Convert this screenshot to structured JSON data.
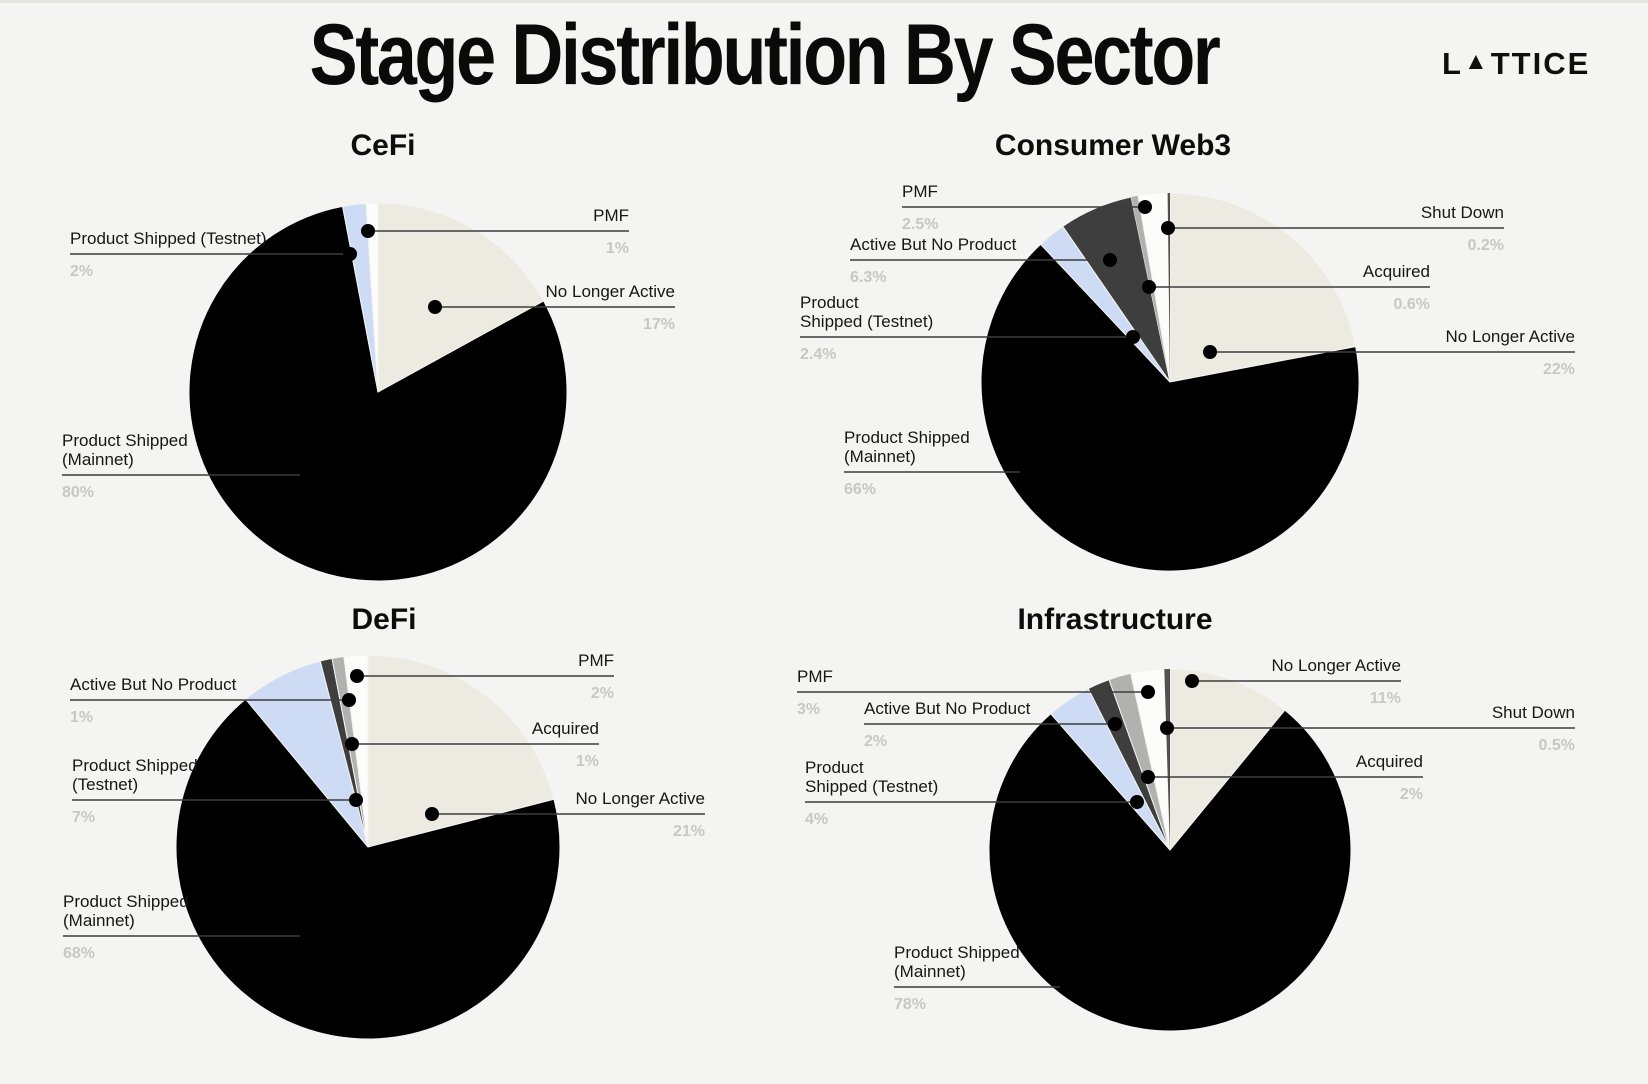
{
  "header": {
    "title": "Stage Distribution By Sector",
    "logo_parts": [
      "L",
      "▲",
      "TTICE"
    ]
  },
  "stages": {
    "no_longer_active": {
      "label": "No Longer Active",
      "color": "#ECEAE1"
    },
    "mainnet": {
      "label": "Product Shipped (Mainnet)",
      "color": "#000000"
    },
    "testnet": {
      "label": "Product Shipped (Testnet)",
      "color": "#CDDCF4"
    },
    "abnp": {
      "label": "Active But No Product",
      "color": "#3E3E3E"
    },
    "acquired": {
      "label": "Acquired",
      "color": "#B1B1AF"
    },
    "pmf": {
      "label": "PMF",
      "color": "#FCFCFB"
    },
    "shut_down": {
      "label": "Shut Down",
      "color": "#515151"
    }
  },
  "chart_data": [
    {
      "type": "pie",
      "title": "CeFi",
      "slices": [
        {
          "stage": "no_longer_active",
          "label": "No Longer Active",
          "label_lines": [
            "No Longer Active"
          ],
          "value": 17,
          "pct": "17%"
        },
        {
          "stage": "mainnet",
          "label": "Product Shipped (Mainnet)",
          "label_lines": [
            "Product Shipped",
            "(Mainnet)"
          ],
          "value": 80,
          "pct": "80%"
        },
        {
          "stage": "testnet",
          "label": "Product Shipped (Testnet)",
          "label_lines": [
            "Product Shipped (Testnet)"
          ],
          "value": 2,
          "pct": "2%"
        },
        {
          "stage": "pmf",
          "label": "PMF",
          "label_lines": [
            "PMF"
          ],
          "value": 1,
          "pct": "1%"
        }
      ]
    },
    {
      "type": "pie",
      "title": "Consumer Web3",
      "slices": [
        {
          "stage": "no_longer_active",
          "label": "No Longer Active",
          "label_lines": [
            "No Longer Active"
          ],
          "value": 22,
          "pct": "22%"
        },
        {
          "stage": "mainnet",
          "label": "Product Shipped (Mainnet)",
          "label_lines": [
            "Product Shipped",
            "(Mainnet)"
          ],
          "value": 66,
          "pct": "66%"
        },
        {
          "stage": "testnet",
          "label": "Product Shipped (Testnet)",
          "label_lines": [
            "Product",
            "Shipped (Testnet)"
          ],
          "value": 2.4,
          "pct": "2.4%"
        },
        {
          "stage": "abnp",
          "label": "Active But No Product",
          "label_lines": [
            "Active But No Product"
          ],
          "value": 6.3,
          "pct": "6.3%"
        },
        {
          "stage": "acquired",
          "label": "Acquired",
          "label_lines": [
            "Acquired"
          ],
          "value": 0.6,
          "pct": "0.6%"
        },
        {
          "stage": "pmf",
          "label": "PMF",
          "label_lines": [
            "PMF"
          ],
          "value": 2.5,
          "pct": "2.5%"
        },
        {
          "stage": "shut_down",
          "label": "Shut Down",
          "label_lines": [
            "Shut Down"
          ],
          "value": 0.2,
          "pct": "0.2%"
        }
      ]
    },
    {
      "type": "pie",
      "title": "DeFi",
      "slices": [
        {
          "stage": "no_longer_active",
          "label": "No Longer Active",
          "label_lines": [
            "No Longer Active"
          ],
          "value": 21,
          "pct": "21%"
        },
        {
          "stage": "mainnet",
          "label": "Product Shipped (Mainnet)",
          "label_lines": [
            "Product Shipped",
            "(Mainnet)"
          ],
          "value": 68,
          "pct": "68%"
        },
        {
          "stage": "testnet",
          "label": "Product Shipped (Testnet)",
          "label_lines": [
            "Product Shipped",
            "(Testnet)"
          ],
          "value": 7,
          "pct": "7%"
        },
        {
          "stage": "abnp",
          "label": "Active But No Product",
          "label_lines": [
            "Active But No Product"
          ],
          "value": 1,
          "pct": "1%"
        },
        {
          "stage": "acquired",
          "label": "Acquired",
          "label_lines": [
            "Acquired"
          ],
          "value": 1,
          "pct": "1%"
        },
        {
          "stage": "pmf",
          "label": "PMF",
          "label_lines": [
            "PMF"
          ],
          "value": 2,
          "pct": "2%"
        }
      ]
    },
    {
      "type": "pie",
      "title": "Infrastructure",
      "slices": [
        {
          "stage": "no_longer_active",
          "label": "No Longer Active",
          "label_lines": [
            "No Longer Active"
          ],
          "value": 11,
          "pct": "11%"
        },
        {
          "stage": "mainnet",
          "label": "Product Shipped (Mainnet)",
          "label_lines": [
            "Product Shipped",
            "(Mainnet)"
          ],
          "value": 78,
          "pct": "78%"
        },
        {
          "stage": "testnet",
          "label": "Product Shipped (Testnet)",
          "label_lines": [
            "Product",
            "Shipped (Testnet)"
          ],
          "value": 4,
          "pct": "4%"
        },
        {
          "stage": "abnp",
          "label": "Active But No Product",
          "label_lines": [
            "Active But No Product"
          ],
          "value": 2,
          "pct": "2%"
        },
        {
          "stage": "acquired",
          "label": "Acquired",
          "label_lines": [
            "Acquired"
          ],
          "value": 2,
          "pct": "2%"
        },
        {
          "stage": "pmf",
          "label": "PMF",
          "label_lines": [
            "PMF"
          ],
          "value": 3,
          "pct": "3%"
        },
        {
          "stage": "shut_down",
          "label": "Shut Down",
          "label_lines": [
            "Shut Down"
          ],
          "value": 0.5,
          "pct": "0.5%"
        }
      ]
    }
  ]
}
